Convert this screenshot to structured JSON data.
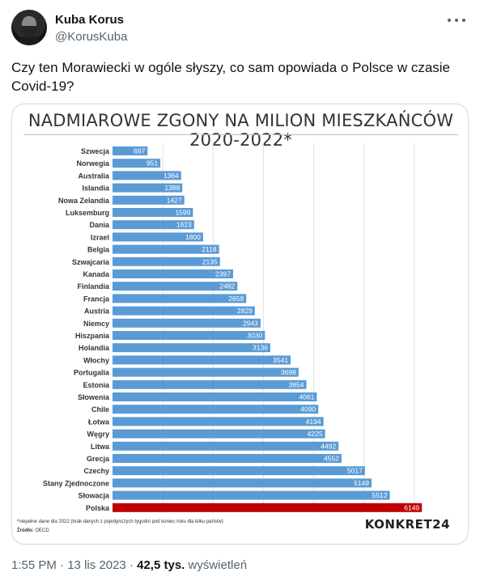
{
  "tweet": {
    "display_name": "Kuba Korus",
    "handle": "@KorusKuba",
    "text": "Czy ten Morawiecki w ogóle słyszy, co sam opowiada o Polsce w czasie Covid-19?",
    "time": "1:55 PM",
    "date": "13 lis 2023",
    "separator": "·",
    "views_count": "42,5 tys.",
    "views_label": "wyświetleń"
  },
  "icons": {
    "more": "more-horizontal-icon",
    "avatar": "user-avatar"
  },
  "chart_data": {
    "type": "bar",
    "orientation": "horizontal",
    "title": "NADMIAROWE ZGONY NA MILION MIESZKAŃCÓW 2020-2022*",
    "categories": [
      "Szwecja",
      "Norwegia",
      "Australia",
      "Islandia",
      "Nowa Zelandia",
      "Luksemburg",
      "Dania",
      "Izrael",
      "Belgia",
      "Szwajcaria",
      "Kanada",
      "Finlandia",
      "Francja",
      "Austria",
      "Niemcy",
      "Hiszpania",
      "Holandia",
      "Włochy",
      "Portugalia",
      "Estonia",
      "Słowenia",
      "Chile",
      "Łotwa",
      "Węgry",
      "Litwa",
      "Grecja",
      "Czechy",
      "Stany Zjednoczone",
      "Słowacja",
      "Polska"
    ],
    "values": [
      697,
      951,
      1364,
      1388,
      1427,
      1599,
      1623,
      1800,
      2118,
      2135,
      2397,
      2482,
      2658,
      2829,
      2943,
      3030,
      3136,
      3541,
      3698,
      3854,
      4061,
      4090,
      4194,
      4225,
      4492,
      4552,
      5017,
      5149,
      5512,
      6149
    ],
    "xlim": [
      0,
      6500
    ],
    "grid": true,
    "bar_color": "#5b9bd5",
    "highlight_color": "#c00000",
    "highlight_category": "Polska",
    "footnote": "*niepełne dane dla 2022 (brak danych z pojedynczych tygodni pod koniec roku dla kilku państw)",
    "source_label": "Źródło:",
    "source": "OECD",
    "brand": "KONKRET24"
  }
}
